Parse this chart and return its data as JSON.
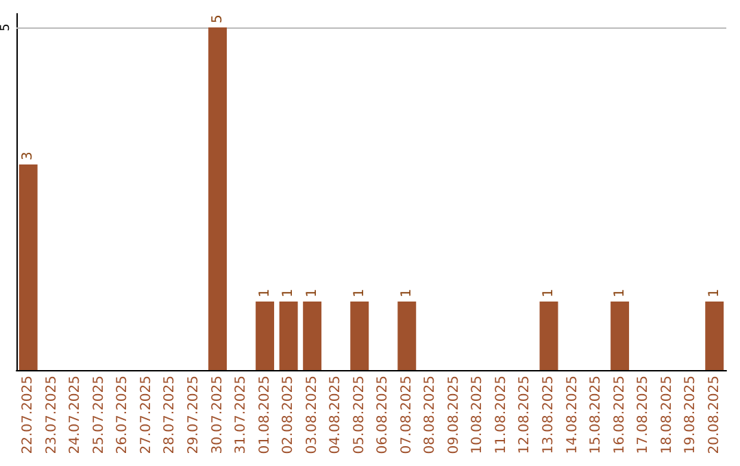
{
  "chart_data": {
    "type": "bar",
    "categories": [
      "22.07.2025",
      "23.07.2025",
      "24.07.2025",
      "25.07.2025",
      "26.07.2025",
      "27.07.2025",
      "28.07.2025",
      "29.07.2025",
      "30.07.2025",
      "31.07.2025",
      "01.08.2025",
      "02.08.2025",
      "03.08.2025",
      "04.08.2025",
      "05.08.2025",
      "06.08.2025",
      "07.08.2025",
      "08.08.2025",
      "09.08.2025",
      "10.08.2025",
      "11.08.2025",
      "12.08.2025",
      "13.08.2025",
      "14.08.2025",
      "15.08.2025",
      "16.08.2025",
      "17.08.2025",
      "18.08.2025",
      "19.08.2025",
      "20.08.2025"
    ],
    "values": [
      3,
      0,
      0,
      0,
      0,
      0,
      0,
      0,
      5,
      0,
      1,
      1,
      1,
      0,
      1,
      0,
      1,
      0,
      0,
      0,
      0,
      0,
      1,
      0,
      0,
      1,
      0,
      0,
      0,
      1
    ],
    "value_labels": [
      "3",
      null,
      null,
      null,
      null,
      null,
      null,
      null,
      "5",
      null,
      "1",
      "1",
      "1",
      null,
      "1",
      null,
      "1",
      null,
      null,
      null,
      null,
      null,
      "1",
      null,
      null,
      "1",
      null,
      null,
      null,
      "1"
    ],
    "color": "#a0522d",
    "ylim": [
      0,
      5.2
    ],
    "yticks": [
      5
    ],
    "grid": "y"
  }
}
